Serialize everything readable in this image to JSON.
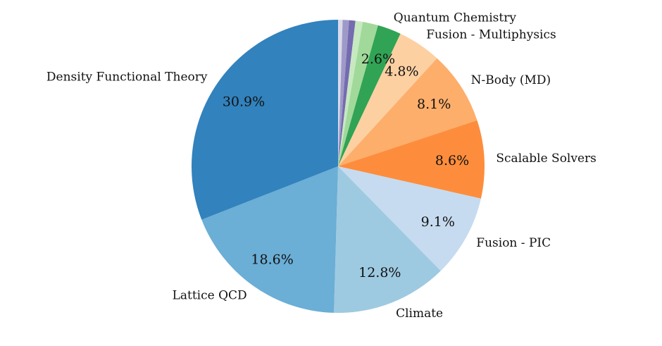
{
  "chart_data": {
    "type": "pie",
    "title": "",
    "start_angle_deg": 90,
    "direction": "clockwise",
    "slices": [
      {
        "label": "",
        "value": 0.5,
        "pct_label": "",
        "color": "#dadaeb"
      },
      {
        "label": "",
        "value": 0.7,
        "pct_label": "",
        "color": "#9e9ac8"
      },
      {
        "label": "",
        "value": 0.7,
        "pct_label": "",
        "color": "#756bb1"
      },
      {
        "label": "",
        "value": 0.8,
        "pct_label": "",
        "color": "#c7e9c0"
      },
      {
        "label": "",
        "value": 1.7,
        "pct_label": "",
        "color": "#a1d99b"
      },
      {
        "label": "Quantum Chemistry",
        "value": 2.6,
        "pct_label": "2.6%",
        "color": "#31a354"
      },
      {
        "label": "Fusion - Multiphysics",
        "value": 4.8,
        "pct_label": "4.8%",
        "color": "#fdd0a2"
      },
      {
        "label": "N-Body (MD)",
        "value": 8.1,
        "pct_label": "8.1%",
        "color": "#fdae6b"
      },
      {
        "label": "Scalable Solvers",
        "value": 8.6,
        "pct_label": "8.6%",
        "color": "#fd8d3c"
      },
      {
        "label": "Fusion - PIC",
        "value": 9.1,
        "pct_label": "9.1%",
        "color": "#c6dbef"
      },
      {
        "label": "Climate",
        "value": 12.8,
        "pct_label": "12.8%",
        "color": "#9ecae1"
      },
      {
        "label": "Lattice QCD",
        "value": 18.6,
        "pct_label": "18.6%",
        "color": "#6baed6"
      },
      {
        "label": "Density Functional Theory",
        "value": 30.9,
        "pct_label": "30.9%",
        "color": "#3182bd"
      }
    ]
  }
}
